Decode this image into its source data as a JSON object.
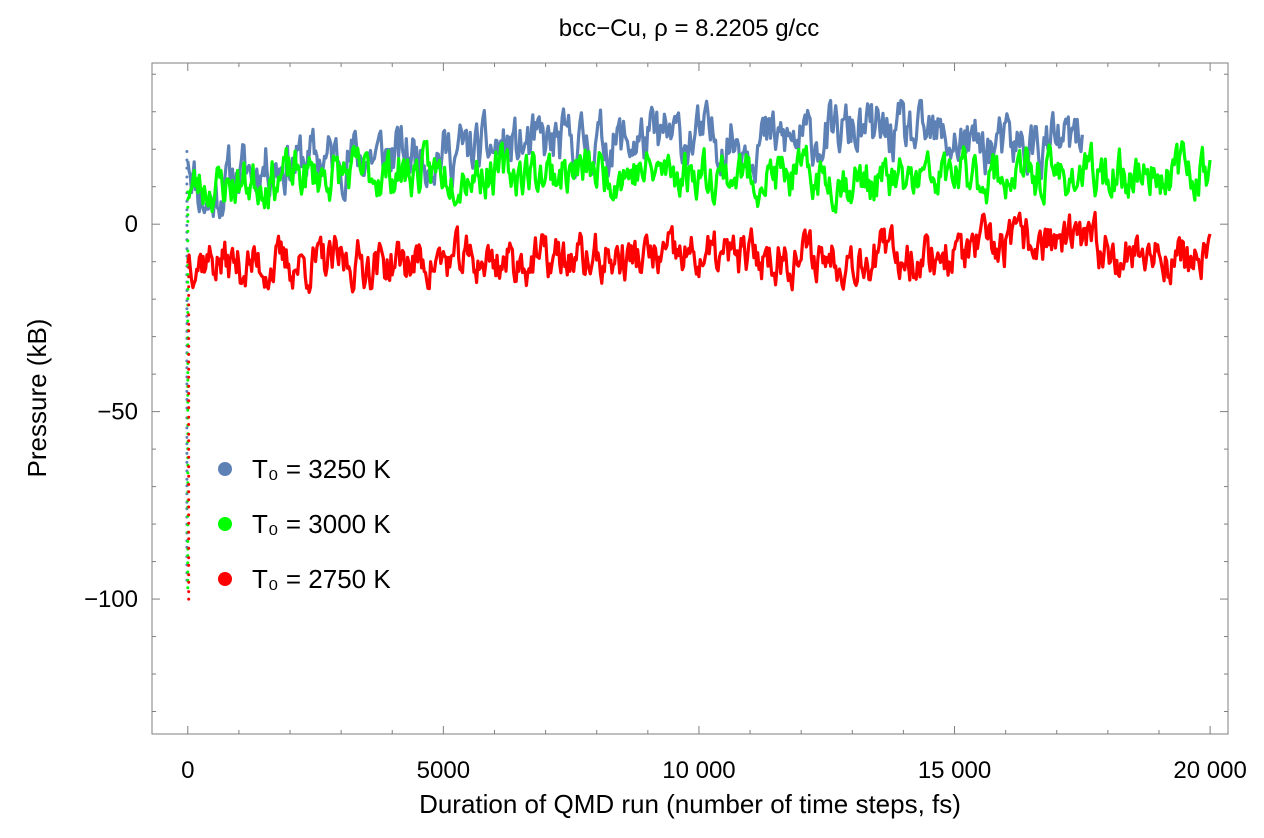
{
  "chart_data": {
    "type": "line",
    "title": "bcc−Cu, ρ = 8.2205 g/cc",
    "xlabel": "Duration of QMD run (number of time steps, fs)",
    "ylabel": "Pressure (kB)",
    "xlim": [
      -700,
      20350
    ],
    "ylim": [
      -136,
      43
    ],
    "x_ticks": [
      0,
      5000,
      10000,
      15000,
      20000
    ],
    "x_tick_labels": [
      "0",
      "5000",
      "10 000",
      "15 000",
      "20 000"
    ],
    "y_ticks": [
      0,
      -50,
      -100
    ],
    "y_tick_labels": [
      "0",
      "−50",
      "−100"
    ],
    "legend_position": "center-left",
    "series": [
      {
        "name": "T₀ = 3250 K",
        "color": "#5e81b5",
        "x_end": 17500,
        "initial_value": -95,
        "peak_value": 33,
        "anchors": [
          [
            0,
            20
          ],
          [
            200,
            10
          ],
          [
            400,
            5
          ],
          [
            800,
            12
          ],
          [
            1500,
            16
          ],
          [
            3000,
            18
          ],
          [
            5000,
            19
          ],
          [
            7000,
            21
          ],
          [
            10000,
            23
          ],
          [
            12000,
            22
          ],
          [
            13000,
            25
          ],
          [
            15000,
            22
          ],
          [
            16000,
            20
          ],
          [
            17500,
            22
          ]
        ],
        "noise_amplitude": 6,
        "seed": 11
      },
      {
        "name": "T₀ = 3000 K",
        "color": "#00ff00",
        "x_end": 20000,
        "initial_value": -97,
        "peak_value": 25,
        "anchors": [
          [
            0,
            10
          ],
          [
            500,
            10
          ],
          [
            2000,
            13
          ],
          [
            5000,
            14
          ],
          [
            10000,
            14
          ],
          [
            14000,
            11
          ],
          [
            15000,
            13
          ],
          [
            18000,
            13
          ],
          [
            20000,
            15
          ]
        ],
        "noise_amplitude": 5,
        "seed": 23
      },
      {
        "name": "T₀ = 2750 K",
        "color": "#ff0000",
        "x_end": 20000,
        "initial_value": -100,
        "peak_value": 5,
        "anchors": [
          [
            0,
            -8
          ],
          [
            1000,
            -11
          ],
          [
            5000,
            -10
          ],
          [
            10000,
            -9
          ],
          [
            15000,
            -8
          ],
          [
            16700,
            -4
          ],
          [
            20000,
            -10
          ]
        ],
        "noise_amplitude": 5,
        "seed": 37
      }
    ]
  }
}
